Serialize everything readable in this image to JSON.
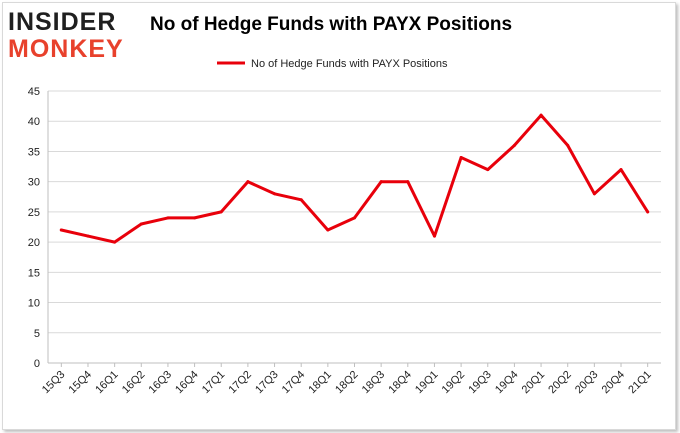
{
  "logo": {
    "line1": "INSIDER",
    "line2": "MONKEY"
  },
  "chart_data": {
    "type": "line",
    "title": "No of Hedge Funds with PAYX Positions",
    "xlabel": "",
    "ylabel": "",
    "ylim": [
      0,
      45
    ],
    "yticks": [
      0,
      5,
      10,
      15,
      20,
      25,
      30,
      35,
      40,
      45
    ],
    "grid": true,
    "legend_position": "top-center",
    "categories": [
      "15Q3",
      "15Q4",
      "16Q1",
      "16Q2",
      "16Q3",
      "16Q4",
      "17Q1",
      "17Q2",
      "17Q3",
      "17Q4",
      "18Q1",
      "18Q2",
      "18Q3",
      "18Q4",
      "19Q1",
      "19Q2",
      "19Q3",
      "19Q4",
      "20Q1",
      "20Q2",
      "20Q3",
      "20Q4",
      "21Q1"
    ],
    "series": [
      {
        "name": "No of Hedge Funds with PAYX Positions",
        "color": "#e8000b",
        "values": [
          22,
          21,
          20,
          23,
          24,
          24,
          25,
          30,
          28,
          27,
          22,
          24,
          30,
          30,
          21,
          34,
          32,
          36,
          41,
          36,
          28,
          32,
          25
        ]
      }
    ]
  }
}
